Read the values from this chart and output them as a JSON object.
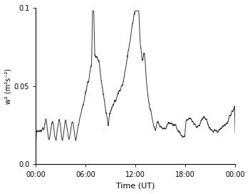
{
  "title": "",
  "xlabel": "Time (UT)",
  "ylabel": "w² (m²s⁻²)",
  "xlim": [
    0,
    24
  ],
  "ylim": [
    0.0,
    0.1
  ],
  "yticks": [
    0.0,
    0.05,
    0.1
  ],
  "ytick_labels": [
    "0.0",
    "0.05",
    "0.1"
  ],
  "xticks": [
    0,
    6,
    12,
    18,
    24
  ],
  "xtick_labels": [
    "00:00",
    "06:00",
    "12:00",
    "18:00",
    "00:00"
  ],
  "line_color": "#333333",
  "line_width": 0.7,
  "background_color": "#ffffff"
}
